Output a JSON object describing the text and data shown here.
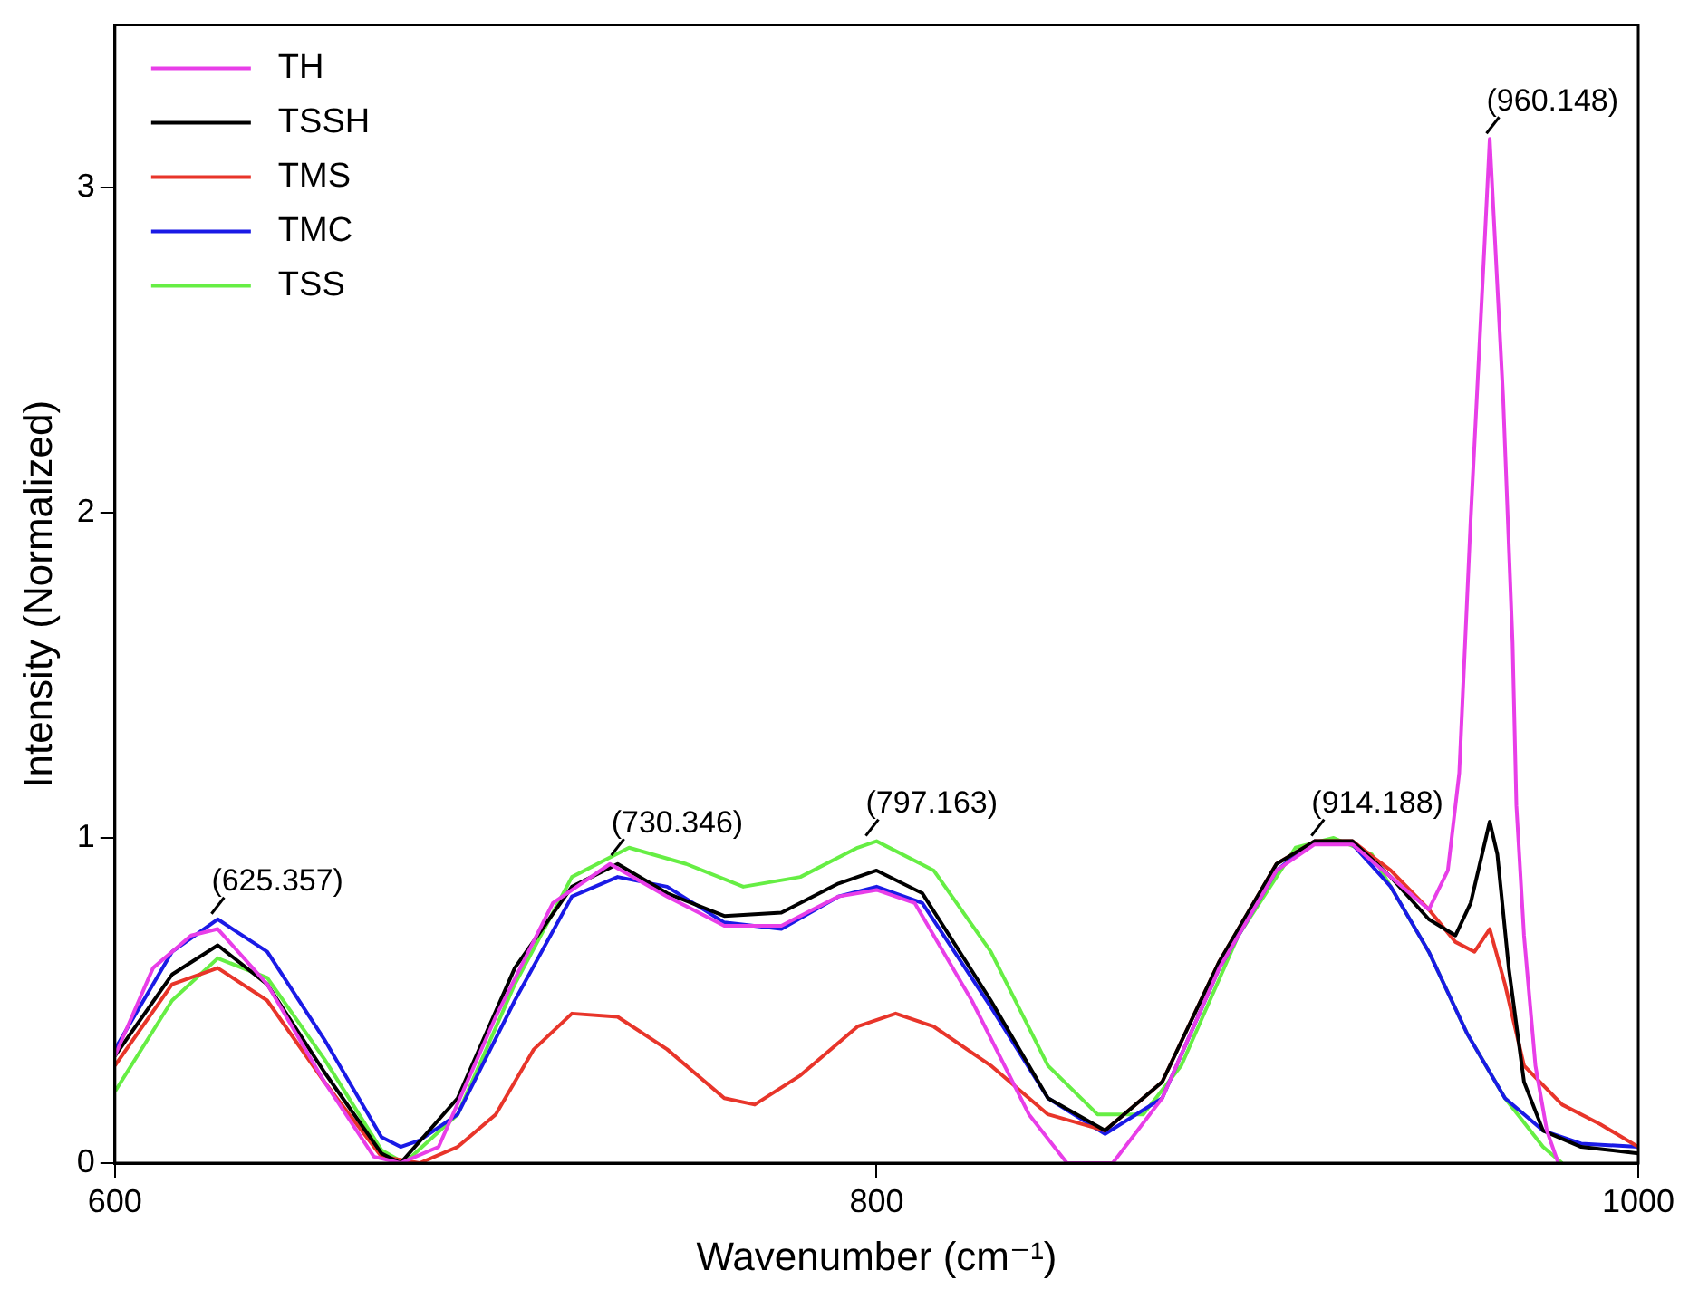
{
  "chart_data": {
    "type": "line",
    "xlabel": "Wavenumber (cm⁻¹)",
    "ylabel": "Intensity (Normalized)",
    "xlim": [
      600,
      1000
    ],
    "xticks": [
      600,
      800,
      1000
    ],
    "ylim": [
      0,
      3.5
    ],
    "yticks": [
      0,
      1,
      2,
      3
    ],
    "grid": false,
    "legend": "top left",
    "marker": "none",
    "line_style": "solid",
    "series": [
      {
        "name": "TH",
        "color": "#e83ee8",
        "x": [
          600,
          610,
          620,
          627,
          640,
          655,
          668,
          675,
          685,
          700,
          715,
          730,
          745,
          760,
          775,
          790,
          800,
          810,
          825,
          840,
          850,
          862,
          875,
          890,
          905,
          915,
          925,
          935,
          945,
          950,
          953,
          956,
          959.7,
          961,
          964.5,
          967,
          968,
          970,
          973,
          976,
          979
        ],
        "values": [
          0.33,
          0.6,
          0.7,
          0.72,
          0.55,
          0.25,
          0.02,
          0,
          0.05,
          0.45,
          0.8,
          0.92,
          0.82,
          0.73,
          0.73,
          0.82,
          0.84,
          0.8,
          0.5,
          0.15,
          0,
          0,
          0.2,
          0.6,
          0.9,
          0.98,
          0.98,
          0.88,
          0.78,
          0.9,
          1.2,
          1.98,
          2.84,
          3.15,
          2.36,
          1.6,
          1.1,
          0.7,
          0.3,
          0.1,
          0
        ]
      },
      {
        "name": "TSSH",
        "color": "#000000",
        "x": [
          600,
          615,
          627,
          640,
          655,
          670,
          675,
          690,
          705,
          720,
          732,
          745,
          760,
          775,
          790,
          800,
          812,
          830,
          845,
          860,
          875,
          890,
          905,
          915,
          925,
          935,
          945,
          952,
          956,
          961,
          963,
          966,
          970,
          975,
          985,
          1000
        ],
        "values": [
          0.33,
          0.58,
          0.67,
          0.55,
          0.28,
          0.03,
          0,
          0.2,
          0.6,
          0.85,
          0.92,
          0.83,
          0.76,
          0.77,
          0.86,
          0.9,
          0.83,
          0.5,
          0.2,
          0.1,
          0.25,
          0.62,
          0.92,
          0.99,
          0.99,
          0.88,
          0.75,
          0.7,
          0.8,
          1.05,
          0.95,
          0.6,
          0.25,
          0.1,
          0.05,
          0.03
        ]
      },
      {
        "name": "TMS",
        "color": "#e8352a",
        "x": [
          600,
          615,
          627,
          640,
          655,
          670,
          680,
          690,
          700,
          710,
          720,
          732,
          745,
          760,
          768,
          780,
          795,
          805,
          815,
          830,
          845,
          860,
          875,
          890,
          905,
          915,
          925,
          935,
          945,
          952,
          957,
          961,
          965,
          970,
          980,
          990,
          1000
        ],
        "values": [
          0.3,
          0.55,
          0.6,
          0.5,
          0.25,
          0.02,
          0,
          0.05,
          0.15,
          0.35,
          0.46,
          0.45,
          0.35,
          0.2,
          0.18,
          0.27,
          0.42,
          0.46,
          0.42,
          0.3,
          0.15,
          0.1,
          0.25,
          0.62,
          0.92,
          0.99,
          0.99,
          0.9,
          0.78,
          0.68,
          0.65,
          0.72,
          0.55,
          0.3,
          0.18,
          0.12,
          0.05
        ]
      },
      {
        "name": "TMC",
        "color": "#1a1ae6",
        "x": [
          600,
          615,
          627,
          640,
          655,
          670,
          675,
          680,
          690,
          705,
          720,
          732,
          745,
          760,
          775,
          790,
          800,
          812,
          830,
          845,
          860,
          875,
          890,
          905,
          915,
          925,
          935,
          945,
          955,
          965,
          975,
          985,
          1000
        ],
        "values": [
          0.35,
          0.65,
          0.75,
          0.65,
          0.38,
          0.08,
          0.05,
          0.07,
          0.15,
          0.5,
          0.82,
          0.88,
          0.85,
          0.74,
          0.72,
          0.82,
          0.85,
          0.8,
          0.48,
          0.2,
          0.09,
          0.2,
          0.6,
          0.9,
          0.99,
          0.98,
          0.85,
          0.65,
          0.4,
          0.2,
          0.1,
          0.06,
          0.05
        ]
      },
      {
        "name": "TSS",
        "color": "#66ee44",
        "x": [
          600,
          615,
          627,
          640,
          655,
          670,
          676,
          690,
          705,
          720,
          735,
          750,
          765,
          780,
          795,
          800,
          815,
          830,
          845,
          858,
          870,
          880,
          895,
          910,
          920,
          930,
          945,
          955,
          965,
          975,
          980
        ],
        "values": [
          0.22,
          0.5,
          0.63,
          0.57,
          0.32,
          0.04,
          0,
          0.15,
          0.55,
          0.88,
          0.97,
          0.92,
          0.85,
          0.88,
          0.97,
          0.99,
          0.9,
          0.65,
          0.3,
          0.15,
          0.15,
          0.3,
          0.7,
          0.97,
          1,
          0.95,
          0.65,
          0.4,
          0.2,
          0.05,
          0
        ]
      }
    ],
    "annotations": [
      {
        "text": "(625.357)",
        "x": 625.357,
        "y": 0.75
      },
      {
        "text": "(730.346)",
        "x": 730.346,
        "y": 0.93
      },
      {
        "text": "(797.163)",
        "x": 797.163,
        "y": 0.99
      },
      {
        "text": "(914.188)",
        "x": 914.188,
        "y": 0.99
      },
      {
        "text": "(960.148)",
        "x": 960.148,
        "y": 3.15
      }
    ]
  }
}
